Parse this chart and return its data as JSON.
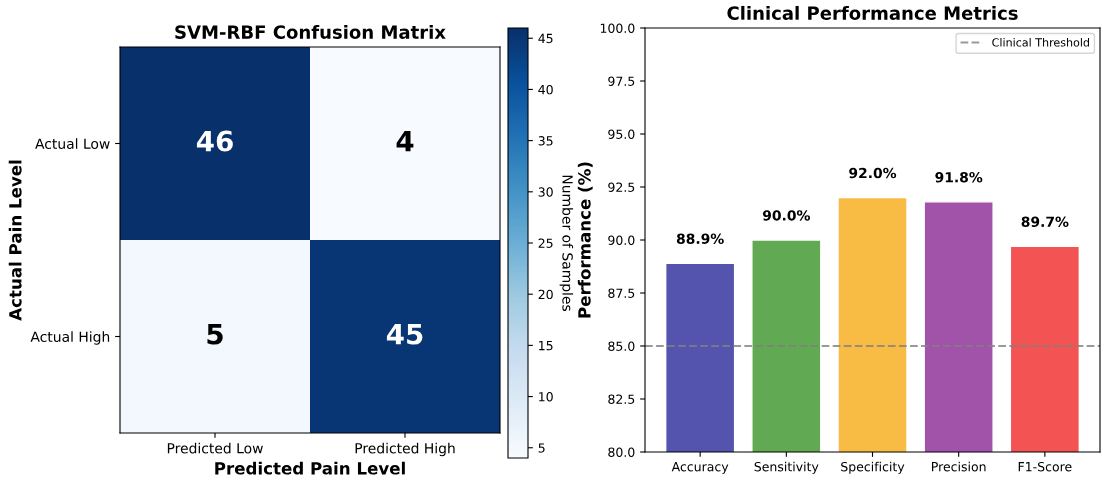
{
  "chart_data": [
    {
      "type": "heatmap",
      "title": "SVM-RBF Confusion Matrix",
      "xlabel": "Predicted Pain Level",
      "ylabel": "Actual Pain Level",
      "clabel": "Number of Samples",
      "categories": [
        "Predicted Low",
        "Predicted High"
      ],
      "y_categories": [
        "Actual Low",
        "Actual High"
      ],
      "cells": [
        [
          46,
          4
        ],
        [
          5,
          45
        ]
      ],
      "clim": [
        4,
        46
      ],
      "cticks": [
        5,
        10,
        15,
        20,
        25,
        30,
        35,
        40,
        45
      ],
      "data_labels": true
    },
    {
      "type": "bar",
      "title": "Clinical Performance Metrics",
      "ylabel": "Performance (%)",
      "categories": [
        "Accuracy",
        "Sensitivity",
        "Specificity",
        "Precision",
        "F1-Score"
      ],
      "values": [
        88.9,
        90.0,
        92.0,
        91.8,
        89.7
      ],
      "colors": [
        "#4b4bab",
        "#5aa54a",
        "#f8b93c",
        "#9d4aa6",
        "#f34a4a"
      ],
      "value_labels": [
        "88.9%",
        "90.0%",
        "92.0%",
        "91.8%",
        "89.7%"
      ],
      "ylim": [
        80,
        100
      ],
      "yticks": [
        {
          "value": 80,
          "label": "80.0"
        },
        {
          "value": 82.5,
          "label": "82.5"
        },
        {
          "value": 85,
          "label": "85.0"
        },
        {
          "value": 87.5,
          "label": "87.5"
        },
        {
          "value": 90,
          "label": "90.0"
        },
        {
          "value": 92.5,
          "label": "92.5"
        },
        {
          "value": 95,
          "label": "95.0"
        },
        {
          "value": 97.5,
          "label": "97.5"
        },
        {
          "value": 100,
          "label": "100.0"
        }
      ],
      "ref_lines": [
        {
          "axis": "y",
          "value": 85,
          "label": "Clinical Threshold",
          "color": "#808080",
          "line_style": "dashed"
        }
      ],
      "legend": "top right"
    }
  ]
}
